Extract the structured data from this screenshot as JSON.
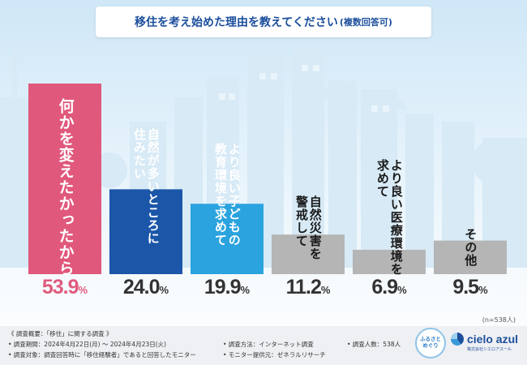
{
  "title": {
    "main": "移住を考え始めた理由を教えてください",
    "sub": "(複数回答可)"
  },
  "colors": {
    "first": "#e0587c",
    "navy": "#1b56a8",
    "sky": "#2aa3de",
    "gray": "#b5b5b5",
    "label_dark": "#1a1a1a"
  },
  "chart_data": {
    "type": "bar",
    "title": "移住を考え始めた理由を教えてください(複数回答可)",
    "categories": [
      "何かを変えたかったから",
      "自然が多いところに住みたい",
      "より良い子どもの教育環境を求めて",
      "自然災害を警戒して",
      "より良い医療環境を求めて",
      "その他"
    ],
    "values": [
      53.9,
      24.0,
      19.9,
      11.2,
      6.9,
      9.5
    ],
    "value_labels": [
      "53.9",
      "24.0",
      "19.9",
      "11.2",
      "6.9",
      "9.5"
    ],
    "unit": "%",
    "label_lines": [
      [
        "何かを変えたかったから"
      ],
      [
        "自然が多いところに",
        "住みたい"
      ],
      [
        "より良い子どもの",
        "教育環境を求めて"
      ],
      [
        "自然災害を",
        "警戒して"
      ],
      [
        "より良い医療環境を",
        "求めて"
      ],
      [
        "その他"
      ]
    ],
    "bar_styles": [
      "first",
      "navy",
      "sky",
      "gray",
      "gray",
      "gray"
    ],
    "ylim": [
      0,
      60
    ],
    "xlabel": "",
    "ylabel": ""
  },
  "sample_size": "(n=538人)",
  "footer": {
    "overview": "《 調査概要：「移住」に関する調査 》",
    "period": "• 調査期間：2024年4月22日(月) 〜 2024年4月23日(火)",
    "target": "• 調査対象：調査回答時に「移住経験者」であると回答したモニター",
    "method": "• 調査方法：インターネット調査",
    "provider": "• モニター提供元：ゼネラルリサーチ",
    "count": "• 調査人数：538人"
  },
  "logo": {
    "line1": "ふるさと",
    "line2": "めぐり"
  },
  "brand": {
    "name": "cielo azul",
    "sub": "株式会社シエロアスール"
  }
}
